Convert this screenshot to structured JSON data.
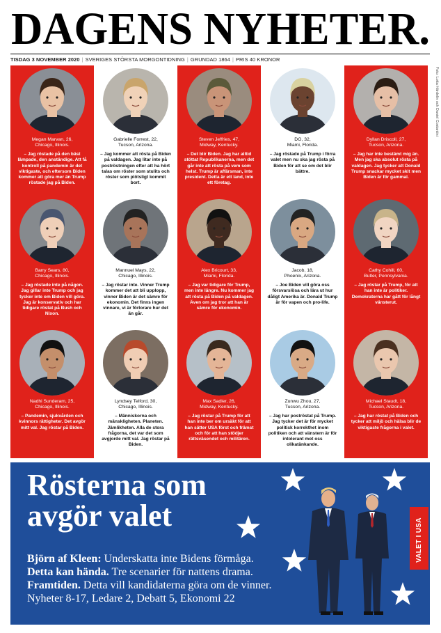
{
  "header": {
    "title": "DAGENS NYHETER.",
    "dateline": [
      "TISDAG 3 NOVEMBER 2020",
      "SVERIGES STÖRSTA MORGONTIDNING",
      "GRUNDAD 1864",
      "PRIS 40 KRONOR"
    ],
    "credit": "Foto: Lotta Härdelin och Daniel Costantini"
  },
  "people": [
    {
      "name": "Megan Marvan, 26,",
      "place": "Chicago, Illinois.",
      "quote": "– Jag röstade på den bäst lämpade, den anständige. Att få kontroll på pandemin är det viktigaste, och eftersom Biden kommer att göra mer än Trump röstade jag på Biden."
    },
    {
      "name": "Gabrielle Forrest, 22,",
      "place": "Tucson, Arizona.",
      "quote": "– Jag kommer att rösta på Biden på valdagen. Jag litar inte på poströstningen efter att ha hört talas om röster som stulits och röster som plötsligt kommit bort."
    },
    {
      "name": "Steven Jeffries, 47,",
      "place": "Midway, Kentucky.",
      "quote": "– Det blir Biden. Jag har alltid stöttat Republikanerna, men det går inte att rösta på vem som helst. Trump är affärsman, inte president. Detta är ett land, inte ett företag."
    },
    {
      "name": "DG, 32,",
      "place": "Miami, Florida.",
      "quote": "– Jag röstade på Trump i förra valet men nu ska jag rösta på Biden för att se om det blir bättre."
    },
    {
      "name": "Dyllan Driscoll, 27,",
      "place": "Tucson, Arizona.",
      "quote": "– Jag har inte bestämt mig än. Men jag ska absolut rösta på valdagen. Jag tycker att Donald Trump snackar mycket skit men Biden är för gammal."
    },
    {
      "name": "Barry Sears, 80,",
      "place": "Chicago, Illinois.",
      "quote": "– Jag röstade inte på någon. Jag gillar inte Trump och jag tycker inte om Biden vill göra. Jag är konservativ och har tidigare röstat på Bush och Nixon."
    },
    {
      "name": "Mannuel Mays, 22,",
      "place": "Chicago, Illinois.",
      "quote": "– Jag röstar inte. Vinner Trump kommer det att bli upplopp, vinner Biden är det sämre för ekonomin. Det finns ingen vinnare, vi är förlorare hur det än går."
    },
    {
      "name": "Alex Bricourt, 33,",
      "place": "Miami, Florida.",
      "quote": "– Jag var tidigare för Trump, men inte längre. Nu kommer jag att rösta på Biden på valdagen. Även om jag tror att han är sämre för ekonomin."
    },
    {
      "name": "Jacob, 18,",
      "place": "Phoenix, Arizona.",
      "quote": "– Joe Biden vill göra oss försvarslösa och lära ut hur dåligt Amerika är. Donald Trump är för vapen och pro-life."
    },
    {
      "name": "Cathy Cohill, 60,",
      "place": "Butler, Pennsylvania.",
      "quote": "– Jag röstar på Trump, för att han inte är politiker. Demokraterna har gått för långt vänsterut."
    },
    {
      "name": "Nadhi Sunderam, 25,",
      "place": "Chicago, Illinois.",
      "quote": "– Pandemin, sjukvården och kvinnors rättigheter. Det avgör mitt val. Jag röstar på Biden."
    },
    {
      "name": "Lyndsey Telford, 30,",
      "place": "Chicago, Illinois.",
      "quote": "– Människorna och mänskligheten. Planeten. Jämlikheten. Alla de stora frågorna, det var det som avgjorde mitt val. Jag röstar på Biden."
    },
    {
      "name": "Max Sadler, 26,",
      "place": "Midway, Kentucky.",
      "quote": "– Jag röstar på Trump för att han inte ber om ursäkt för att han sätter USA först och främst och för att han stödjer rättsväsendet och militären."
    },
    {
      "name": "Zunwu Zhou, 27,",
      "place": "Tucson, Arizona.",
      "quote": "– Jag har poströstat på Trump. Jag tycker det är för mycket politisk korrekthet inom politiken och att vänstern är för intolerant mot oss olikatänkande."
    },
    {
      "name": "Michael Staudt, 18,",
      "place": "Tucson, Arizona.",
      "quote": "– Jag har röstat på Biden och tycker att miljö och hälsa blir de viktigaste frågorna i valet."
    }
  ],
  "feature": {
    "headline": [
      "Rösterna som",
      "avgör valet"
    ],
    "tab": "VALET I USA",
    "bullets": [
      {
        "lead": "Björn af Kleen:",
        "text": " Underskatta inte Bidens förmåga."
      },
      {
        "lead": "Detta kan hända.",
        "text": " Tre scenarier för nattens drama."
      },
      {
        "lead": "Framtiden.",
        "text": " Detta vill kandidaterna göra om de vinner."
      },
      {
        "text": "Nyheter 8-17, Ledare 2, Debatt 5, Ekonomi 22"
      }
    ]
  }
}
